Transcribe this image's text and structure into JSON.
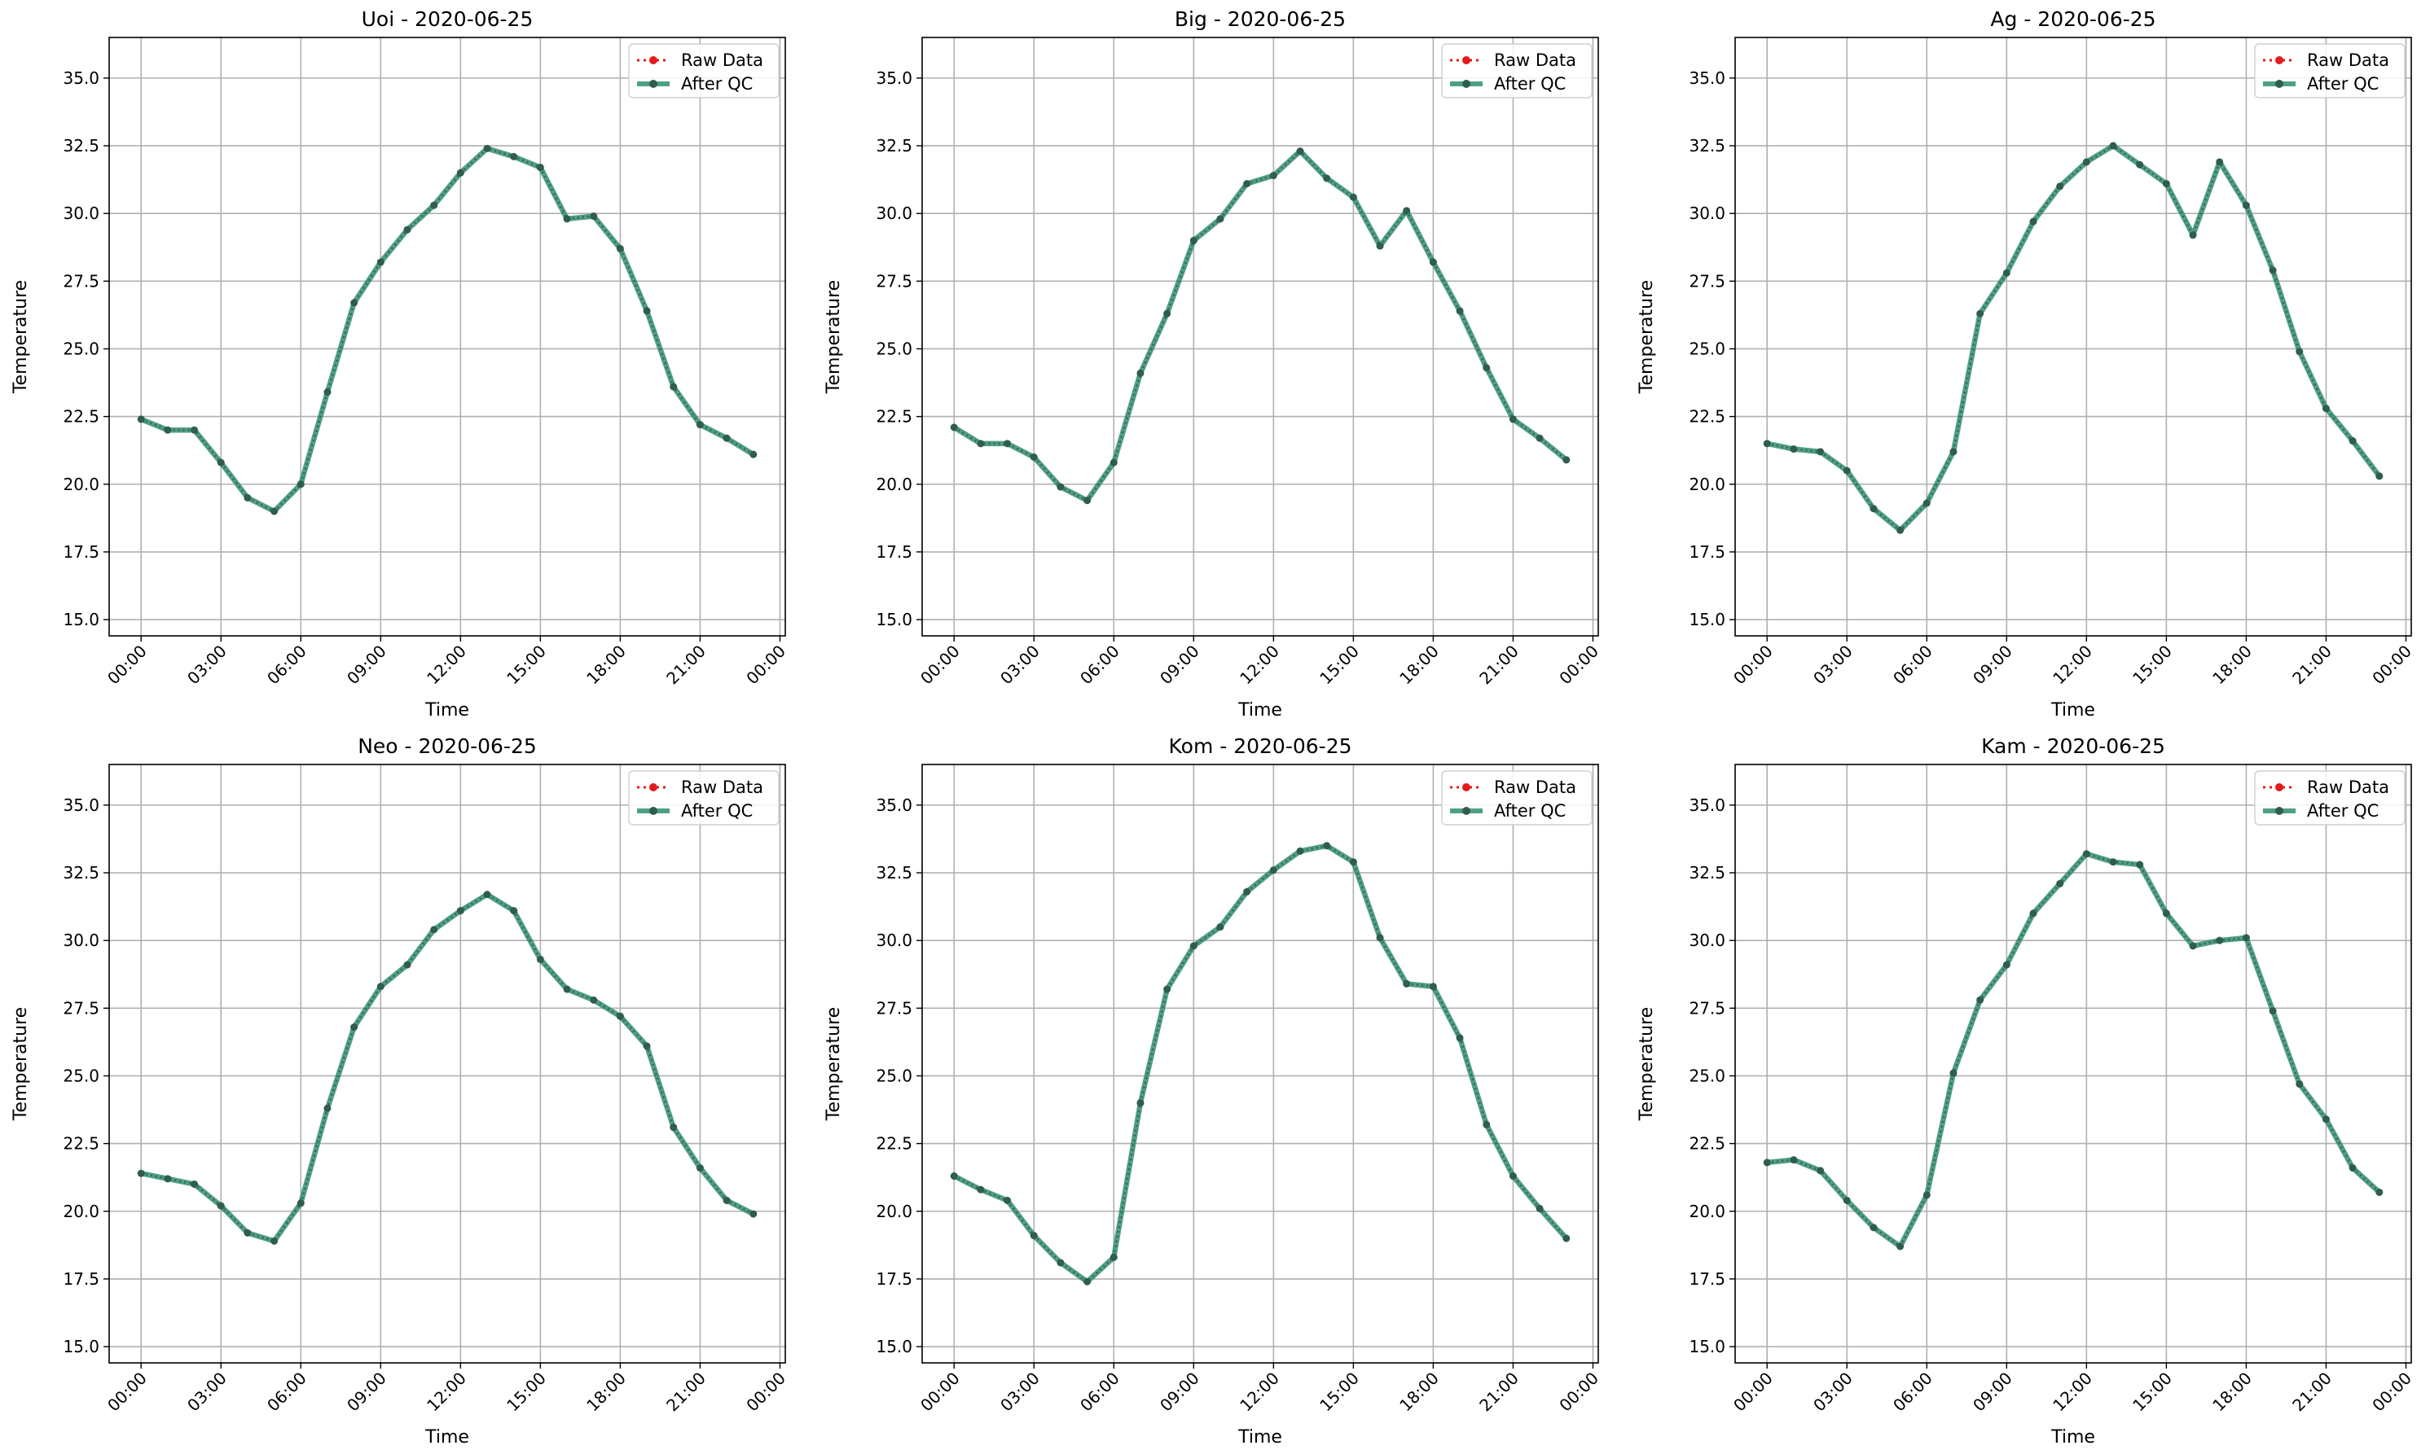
{
  "chart_data": [
    {
      "type": "line",
      "title": "Uoi - 2020-06-25",
      "xlabel": "Time",
      "ylabel": "Temperature",
      "xlim": [
        -1.2,
        24.2
      ],
      "ylim": [
        14.4,
        36.5
      ],
      "xticks": [
        "00:00",
        "03:00",
        "06:00",
        "09:00",
        "12:00",
        "15:00",
        "18:00",
        "21:00",
        "00:00"
      ],
      "yticks": [
        "15.0",
        "17.5",
        "20.0",
        "22.5",
        "25.0",
        "27.5",
        "30.0",
        "32.5",
        "35.0"
      ],
      "grid": true,
      "legend": "top-right",
      "x": [
        0,
        1,
        2,
        3,
        4,
        5,
        6,
        7,
        8,
        9,
        10,
        11,
        12,
        13,
        14,
        15,
        16,
        17,
        18,
        19,
        20,
        21,
        22,
        23
      ],
      "series": [
        {
          "name": "Raw Data",
          "color": "#e41a1c",
          "values": [
            22.4,
            22.0,
            22.0,
            20.8,
            19.5,
            19.0,
            20.0,
            23.4,
            26.7,
            28.2,
            29.4,
            30.3,
            31.5,
            32.4,
            32.1,
            31.7,
            29.8,
            29.9,
            28.7,
            26.4,
            23.6,
            22.2,
            21.7,
            21.1
          ]
        },
        {
          "name": "After QC",
          "color": "#2f8f6f",
          "values": [
            22.4,
            22.0,
            22.0,
            20.8,
            19.5,
            19.0,
            20.0,
            23.4,
            26.7,
            28.2,
            29.4,
            30.3,
            31.5,
            32.4,
            32.1,
            31.7,
            29.8,
            29.9,
            28.7,
            26.4,
            23.6,
            22.2,
            21.7,
            21.1
          ]
        }
      ]
    },
    {
      "type": "line",
      "title": "Big - 2020-06-25",
      "xlabel": "Time",
      "ylabel": "Temperature",
      "xlim": [
        -1.2,
        24.2
      ],
      "ylim": [
        14.4,
        36.5
      ],
      "xticks": [
        "00:00",
        "03:00",
        "06:00",
        "09:00",
        "12:00",
        "15:00",
        "18:00",
        "21:00",
        "00:00"
      ],
      "yticks": [
        "15.0",
        "17.5",
        "20.0",
        "22.5",
        "25.0",
        "27.5",
        "30.0",
        "32.5",
        "35.0"
      ],
      "grid": true,
      "legend": "top-right",
      "x": [
        0,
        1,
        2,
        3,
        4,
        5,
        6,
        7,
        8,
        9,
        10,
        11,
        12,
        13,
        14,
        15,
        16,
        17,
        18,
        19,
        20,
        21,
        22,
        23
      ],
      "series": [
        {
          "name": "Raw Data",
          "color": "#e41a1c",
          "values": [
            22.1,
            21.5,
            21.5,
            21.0,
            19.9,
            19.4,
            20.8,
            24.1,
            26.3,
            29.0,
            29.8,
            31.1,
            31.4,
            32.3,
            31.3,
            30.6,
            28.8,
            30.1,
            28.2,
            26.4,
            24.3,
            22.4,
            21.7,
            20.9
          ]
        },
        {
          "name": "After QC",
          "color": "#2f8f6f",
          "values": [
            22.1,
            21.5,
            21.5,
            21.0,
            19.9,
            19.4,
            20.8,
            24.1,
            26.3,
            29.0,
            29.8,
            31.1,
            31.4,
            32.3,
            31.3,
            30.6,
            28.8,
            30.1,
            28.2,
            26.4,
            24.3,
            22.4,
            21.7,
            20.9
          ]
        }
      ]
    },
    {
      "type": "line",
      "title": "Ag - 2020-06-25",
      "xlabel": "Time",
      "ylabel": "Temperature",
      "xlim": [
        -1.2,
        24.2
      ],
      "ylim": [
        14.4,
        36.5
      ],
      "xticks": [
        "00:00",
        "03:00",
        "06:00",
        "09:00",
        "12:00",
        "15:00",
        "18:00",
        "21:00",
        "00:00"
      ],
      "yticks": [
        "15.0",
        "17.5",
        "20.0",
        "22.5",
        "25.0",
        "27.5",
        "30.0",
        "32.5",
        "35.0"
      ],
      "grid": true,
      "legend": "top-right",
      "x": [
        0,
        1,
        2,
        3,
        4,
        5,
        6,
        7,
        8,
        9,
        10,
        11,
        12,
        13,
        14,
        15,
        16,
        17,
        18,
        19,
        20,
        21,
        22,
        23
      ],
      "series": [
        {
          "name": "Raw Data",
          "color": "#e41a1c",
          "values": [
            21.5,
            21.3,
            21.2,
            20.5,
            19.1,
            18.3,
            19.3,
            21.2,
            26.3,
            27.8,
            29.7,
            31.0,
            31.9,
            32.5,
            31.8,
            31.1,
            29.2,
            31.9,
            30.3,
            27.9,
            24.9,
            22.8,
            21.6,
            20.3
          ]
        },
        {
          "name": "After QC",
          "color": "#2f8f6f",
          "values": [
            21.5,
            21.3,
            21.2,
            20.5,
            19.1,
            18.3,
            19.3,
            21.2,
            26.3,
            27.8,
            29.7,
            31.0,
            31.9,
            32.5,
            31.8,
            31.1,
            29.2,
            31.9,
            30.3,
            27.9,
            24.9,
            22.8,
            21.6,
            20.3
          ]
        }
      ]
    },
    {
      "type": "line",
      "title": "Neo - 2020-06-25",
      "xlabel": "Time",
      "ylabel": "Temperature",
      "xlim": [
        -1.2,
        24.2
      ],
      "ylim": [
        14.4,
        36.5
      ],
      "xticks": [
        "00:00",
        "03:00",
        "06:00",
        "09:00",
        "12:00",
        "15:00",
        "18:00",
        "21:00",
        "00:00"
      ],
      "yticks": [
        "15.0",
        "17.5",
        "20.0",
        "22.5",
        "25.0",
        "27.5",
        "30.0",
        "32.5",
        "35.0"
      ],
      "grid": true,
      "legend": "top-right",
      "x": [
        0,
        1,
        2,
        3,
        4,
        5,
        6,
        7,
        8,
        9,
        10,
        11,
        12,
        13,
        14,
        15,
        16,
        17,
        18,
        19,
        20,
        21,
        22,
        23
      ],
      "series": [
        {
          "name": "Raw Data",
          "color": "#e41a1c",
          "values": [
            21.4,
            21.2,
            21.0,
            20.2,
            19.2,
            18.9,
            20.3,
            23.8,
            26.8,
            28.3,
            29.1,
            30.4,
            31.1,
            31.7,
            31.1,
            29.3,
            28.2,
            27.8,
            27.2,
            26.1,
            23.1,
            21.6,
            20.4,
            19.9
          ]
        },
        {
          "name": "After QC",
          "color": "#2f8f6f",
          "values": [
            21.4,
            21.2,
            21.0,
            20.2,
            19.2,
            18.9,
            20.3,
            23.8,
            26.8,
            28.3,
            29.1,
            30.4,
            31.1,
            31.7,
            31.1,
            29.3,
            28.2,
            27.8,
            27.2,
            26.1,
            23.1,
            21.6,
            20.4,
            19.9
          ]
        }
      ]
    },
    {
      "type": "line",
      "title": "Kom - 2020-06-25",
      "xlabel": "Time",
      "ylabel": "Temperature",
      "xlim": [
        -1.2,
        24.2
      ],
      "ylim": [
        14.4,
        36.5
      ],
      "xticks": [
        "00:00",
        "03:00",
        "06:00",
        "09:00",
        "12:00",
        "15:00",
        "18:00",
        "21:00",
        "00:00"
      ],
      "yticks": [
        "15.0",
        "17.5",
        "20.0",
        "22.5",
        "25.0",
        "27.5",
        "30.0",
        "32.5",
        "35.0"
      ],
      "grid": true,
      "legend": "top-right",
      "x": [
        0,
        1,
        2,
        3,
        4,
        5,
        6,
        7,
        8,
        9,
        10,
        11,
        12,
        13,
        14,
        15,
        16,
        17,
        18,
        19,
        20,
        21,
        22,
        23
      ],
      "series": [
        {
          "name": "Raw Data",
          "color": "#e41a1c",
          "values": [
            21.3,
            20.8,
            20.4,
            19.1,
            18.1,
            17.4,
            18.3,
            24.0,
            28.2,
            29.8,
            30.5,
            31.8,
            32.6,
            33.3,
            33.5,
            32.9,
            30.1,
            28.4,
            28.3,
            26.4,
            23.2,
            21.3,
            20.1,
            19.0
          ]
        },
        {
          "name": "After QC",
          "color": "#2f8f6f",
          "values": [
            21.3,
            20.8,
            20.4,
            19.1,
            18.1,
            17.4,
            18.3,
            24.0,
            28.2,
            29.8,
            30.5,
            31.8,
            32.6,
            33.3,
            33.5,
            32.9,
            30.1,
            28.4,
            28.3,
            26.4,
            23.2,
            21.3,
            20.1,
            19.0
          ]
        }
      ]
    },
    {
      "type": "line",
      "title": "Kam - 2020-06-25",
      "xlabel": "Time",
      "ylabel": "Temperature",
      "xlim": [
        -1.2,
        24.2
      ],
      "ylim": [
        14.4,
        36.5
      ],
      "xticks": [
        "00:00",
        "03:00",
        "06:00",
        "09:00",
        "12:00",
        "15:00",
        "18:00",
        "21:00",
        "00:00"
      ],
      "yticks": [
        "15.0",
        "17.5",
        "20.0",
        "22.5",
        "25.0",
        "27.5",
        "30.0",
        "32.5",
        "35.0"
      ],
      "grid": true,
      "legend": "top-right",
      "x": [
        0,
        1,
        2,
        3,
        4,
        5,
        6,
        7,
        8,
        9,
        10,
        11,
        12,
        13,
        14,
        15,
        16,
        17,
        18,
        19,
        20,
        21,
        22,
        23
      ],
      "series": [
        {
          "name": "Raw Data",
          "color": "#e41a1c",
          "values": [
            21.8,
            21.9,
            21.5,
            20.4,
            19.4,
            18.7,
            20.6,
            25.1,
            27.8,
            29.1,
            31.0,
            32.1,
            33.2,
            32.9,
            32.8,
            31.0,
            29.8,
            30.0,
            30.1,
            27.4,
            24.7,
            23.4,
            21.6,
            20.7
          ]
        },
        {
          "name": "After QC",
          "color": "#2f8f6f",
          "values": [
            21.8,
            21.9,
            21.5,
            20.4,
            19.4,
            18.7,
            20.6,
            25.1,
            27.8,
            29.1,
            31.0,
            32.1,
            33.2,
            32.9,
            32.8,
            31.0,
            29.8,
            30.0,
            30.1,
            27.4,
            24.7,
            23.4,
            21.6,
            20.7
          ]
        }
      ]
    }
  ]
}
